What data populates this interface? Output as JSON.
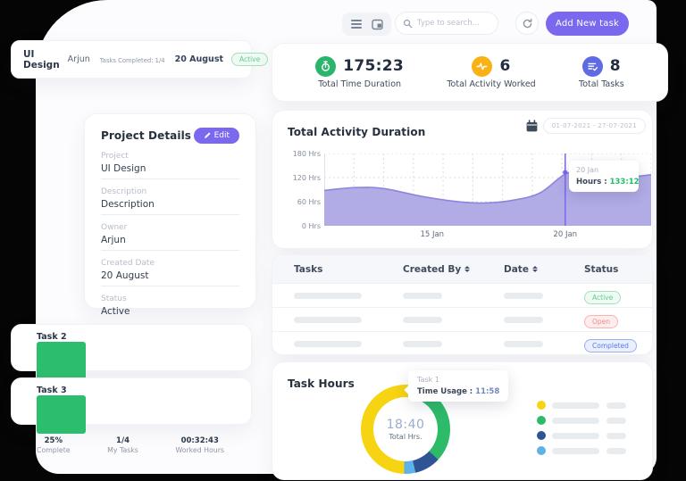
{
  "topbar": {
    "search_placeholder": "Type to search...",
    "add_task_label": "Add New task"
  },
  "mini_project": {
    "name": "UI Design",
    "owner": "Arjun",
    "progress_caption": "Tasks Completed: 1/4",
    "progress_pct": 26,
    "date": "20 August",
    "status": "Active"
  },
  "stats": {
    "items": [
      {
        "value": "175:23",
        "label": "Total Time Duration",
        "color": "#2ab46c",
        "icon": "stopwatch-icon"
      },
      {
        "value": "6",
        "label": "Total Activity Worked",
        "color": "#f9b214",
        "icon": "pulse-icon"
      },
      {
        "value": "8",
        "label": "Total Tasks",
        "color": "#5e6be2",
        "icon": "task-list-icon"
      }
    ]
  },
  "project_details": {
    "title": "Project Details",
    "edit_label": "Edit",
    "fields": [
      {
        "label": "Project",
        "value": "UI Design"
      },
      {
        "label": "Description",
        "value": "Description"
      },
      {
        "label": "Owner",
        "value": "Arjun"
      },
      {
        "label": "Created Date",
        "value": "20 August"
      },
      {
        "label": "Status",
        "value": "Active"
      }
    ]
  },
  "activity_chart": {
    "title": "Total Activity Duration",
    "date_range": "01-07-2021 - 27-07-2021",
    "tooltip": {
      "date": "20 Jan",
      "label": "Hours :",
      "value": "133:12"
    }
  },
  "tasks_table": {
    "headers": {
      "tasks": "Tasks",
      "created_by": "Created By",
      "date": "Date",
      "status": "Status"
    },
    "rows": [
      {
        "status": "Active"
      },
      {
        "status": "Open"
      },
      {
        "status": "Completed"
      }
    ]
  },
  "task_cards": [
    {
      "name": "Task 2",
      "progress_pct": 26,
      "pct": "25%",
      "pct_label": "Complete",
      "count": "1/4",
      "count_label": "My Tasks",
      "hours": "00:32:43",
      "hours_label": "Worked Hours"
    },
    {
      "name": "Task 3",
      "progress_pct": 26,
      "pct": "25%",
      "pct_label": "Complete",
      "count": "1/4",
      "count_label": "My Tasks",
      "hours": "00:32:43",
      "hours_label": "Worked Hours"
    }
  ],
  "task_hours": {
    "title": "Task Hours",
    "center_value": "18:40",
    "center_label": "Total Hrs.",
    "tooltip": {
      "name": "Task 1",
      "label": "Time Usage :",
      "value": "11:58"
    }
  },
  "chart_data": [
    {
      "type": "area",
      "title": "Total Activity Duration",
      "ylabel": "Hrs",
      "ylim": [
        0,
        180
      ],
      "yticks": [
        "0 Hrs",
        "60 Hrs",
        "120 Hrs",
        "180 Hrs"
      ],
      "xticks": [
        {
          "label": "15 Jan",
          "pos": 0.33
        },
        {
          "label": "20 Jan",
          "pos": 0.737
        }
      ],
      "points": [
        [
          0,
          88
        ],
        [
          0.09,
          95
        ],
        [
          0.18,
          93
        ],
        [
          0.3,
          73
        ],
        [
          0.42,
          59
        ],
        [
          0.5,
          57
        ],
        [
          0.58,
          64
        ],
        [
          0.66,
          82
        ],
        [
          0.74,
          130
        ],
        [
          0.8,
          133
        ],
        [
          0.88,
          119
        ],
        [
          1,
          127
        ]
      ],
      "indicator": {
        "pos": 0.737,
        "hrs": 133,
        "date": "20 Jan",
        "value": "133:12"
      },
      "line_color": "#8d86dd",
      "fill_color": "#aaa4e4",
      "grid": true,
      "date_range": "01-07-2021 - 27-07-2021"
    },
    {
      "type": "pie",
      "title": "Task Hours",
      "total_label": "18:40",
      "slices": [
        {
          "name": "Task 1",
          "value": "11:58",
          "color": "#f6d411"
        },
        {
          "color": "#2dba69"
        },
        {
          "color": "#2f5496"
        },
        {
          "color": "#5fb2e8"
        }
      ],
      "gradient_stops": [
        {
          "color": "#f6d411",
          "from": 0,
          "to": 30
        },
        {
          "color": "#2dba69",
          "from": 30,
          "to": 133
        },
        {
          "color": "#2f5496",
          "from": 133,
          "to": 167
        },
        {
          "color": "#5fb2e8",
          "from": 167,
          "to": 182
        },
        {
          "color": "#f6d411",
          "from": 182,
          "to": 360
        }
      ],
      "legend_colors": [
        "#f6d411",
        "#2dba69",
        "#2f5496",
        "#5fb2e8"
      ]
    }
  ]
}
